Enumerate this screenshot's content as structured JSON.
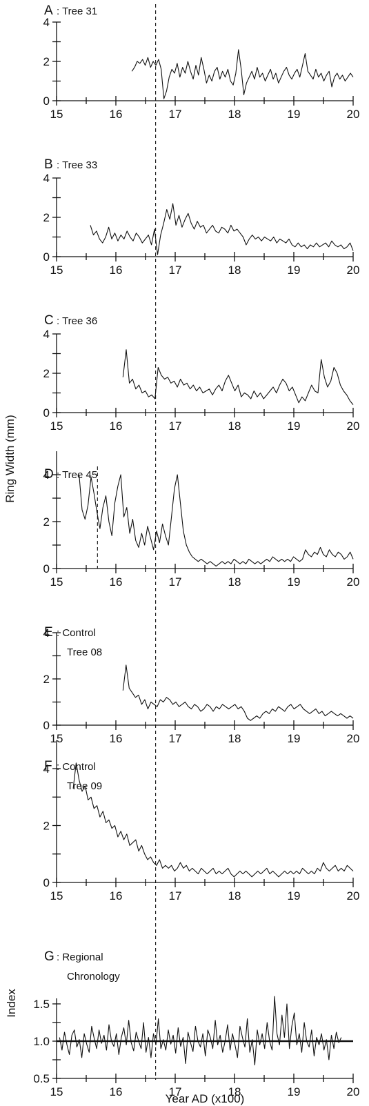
{
  "figure": {
    "ylabel_ring": "Ring Width (mm)",
    "ylabel_index": "Index",
    "xlabel": "Year AD (x100)",
    "event_year": 1667
  },
  "chart_data": [
    {
      "panel": "A",
      "label": "A",
      "sublabel": ": Tree 31",
      "sublabel2": "",
      "type": "line",
      "xlim": [
        15,
        20
      ],
      "xticks": [
        "15",
        "16",
        "17",
        "18",
        "19",
        "20"
      ],
      "ylim": [
        0,
        4
      ],
      "yticks": [
        "0",
        "2",
        "4"
      ],
      "x_start": 16.27,
      "x_end": 20.0,
      "series": [
        {
          "values": [
            1.5,
            1.7,
            2.0,
            1.9,
            2.1,
            1.8,
            2.2,
            1.7,
            2.0,
            1.8,
            2.1,
            1.6,
            0.1,
            0.5,
            1.2,
            1.6,
            1.4,
            1.9,
            1.2,
            1.7,
            1.4,
            2.0,
            1.5,
            1.1,
            1.8,
            1.3,
            2.2,
            1.6,
            0.9,
            1.3,
            1.0,
            1.5,
            1.7,
            1.1,
            1.5,
            1.2,
            1.6,
            1.0,
            0.8,
            1.4,
            2.6,
            1.6,
            0.3,
            0.9,
            1.2,
            1.5,
            1.1,
            1.7,
            1.2,
            1.4,
            1.0,
            1.3,
            1.6,
            1.1,
            1.4,
            0.9,
            1.2,
            1.5,
            1.7,
            1.3,
            1.1,
            1.4,
            1.6,
            1.2,
            1.8,
            2.4,
            1.5,
            1.3,
            1.1,
            1.6,
            1.2,
            1.4,
            1.0,
            1.3,
            1.5,
            0.7,
            1.2,
            1.4,
            1.1,
            1.3,
            1.0,
            1.2,
            1.4,
            1.2
          ]
        }
      ],
      "event_year": 1667
    },
    {
      "panel": "B",
      "label": "B",
      "sublabel": ": Tree 33",
      "sublabel2": "",
      "type": "line",
      "xlim": [
        15,
        20
      ],
      "xticks": [
        "15",
        "16",
        "17",
        "18",
        "19",
        "20"
      ],
      "ylim": [
        0,
        4
      ],
      "yticks": [
        "0",
        "2",
        "4"
      ],
      "x_start": 15.57,
      "x_end": 20.0,
      "series": [
        {
          "values": [
            1.6,
            1.1,
            1.3,
            0.9,
            0.7,
            1.0,
            1.5,
            0.9,
            1.2,
            0.8,
            1.1,
            0.9,
            1.3,
            1.0,
            0.8,
            1.2,
            1.0,
            0.7,
            0.9,
            1.1,
            0.6,
            1.4,
            0.1,
            1.1,
            1.7,
            2.4,
            1.9,
            2.7,
            1.6,
            2.1,
            1.5,
            1.9,
            2.2,
            1.7,
            1.4,
            1.8,
            1.5,
            1.6,
            1.2,
            1.4,
            1.6,
            1.3,
            1.2,
            1.5,
            1.4,
            1.2,
            1.6,
            1.3,
            1.4,
            1.2,
            1.0,
            0.6,
            0.9,
            1.1,
            0.9,
            1.0,
            0.8,
            1.0,
            0.9,
            0.8,
            1.0,
            0.7,
            0.9,
            0.8,
            0.7,
            0.9,
            0.6,
            0.5,
            0.7,
            0.5,
            0.6,
            0.4,
            0.6,
            0.5,
            0.7,
            0.5,
            0.6,
            0.7,
            0.5,
            0.8,
            0.6,
            0.5,
            0.6,
            0.4,
            0.5,
            0.7,
            0.3
          ]
        }
      ],
      "event_year": 1667
    },
    {
      "panel": "C",
      "label": "C",
      "sublabel": ": Tree 36",
      "sublabel2": "",
      "type": "line",
      "xlim": [
        15,
        20
      ],
      "xticks": [
        "15",
        "16",
        "17",
        "18",
        "19",
        "20"
      ],
      "ylim": [
        0,
        4
      ],
      "yticks": [
        "0",
        "2",
        "4"
      ],
      "x_start": 16.12,
      "x_end": 20.0,
      "series": [
        {
          "values": [
            1.8,
            3.2,
            1.5,
            1.7,
            1.2,
            1.4,
            1.0,
            1.1,
            0.8,
            0.9,
            0.7,
            2.3,
            1.9,
            1.7,
            1.8,
            1.5,
            1.6,
            1.3,
            1.7,
            1.4,
            1.5,
            1.2,
            1.4,
            1.1,
            1.3,
            1.0,
            1.1,
            1.2,
            0.9,
            1.2,
            1.4,
            1.1,
            1.6,
            1.9,
            1.5,
            1.1,
            1.4,
            0.8,
            1.0,
            0.9,
            0.7,
            1.1,
            0.8,
            1.0,
            0.7,
            0.9,
            1.1,
            1.3,
            1.0,
            1.4,
            1.7,
            1.5,
            1.1,
            1.3,
            0.9,
            0.5,
            0.8,
            0.6,
            1.0,
            1.4,
            1.1,
            1.0,
            2.7,
            1.8,
            1.3,
            1.6,
            2.3,
            2.0,
            1.4,
            1.1,
            0.9,
            0.6,
            0.4
          ]
        }
      ],
      "event_year": 1667
    },
    {
      "panel": "D",
      "label": "D",
      "sublabel": ": Tree 45",
      "sublabel2": "",
      "type": "line",
      "xlim": [
        15,
        20
      ],
      "xticks": [
        "15",
        "16",
        "17",
        "18",
        "19",
        "20"
      ],
      "ylim": [
        0,
        5
      ],
      "yticks": [
        "0",
        "2",
        "4"
      ],
      "x_start": 15.38,
      "x_end": 20.0,
      "series": [
        {
          "values": [
            4.0,
            2.5,
            2.1,
            2.7,
            3.9,
            3.2,
            2.4,
            1.7,
            2.6,
            3.1,
            2.0,
            1.4,
            2.8,
            3.5,
            4.0,
            2.2,
            2.6,
            1.5,
            2.1,
            1.2,
            0.9,
            1.5,
            1.0,
            1.8,
            1.3,
            0.8,
            1.6,
            1.1,
            1.9,
            1.4,
            1.0,
            2.2,
            3.4,
            4.0,
            2.8,
            1.6,
            1.0,
            0.7,
            0.5,
            0.4,
            0.3,
            0.4,
            0.3,
            0.2,
            0.3,
            0.2,
            0.1,
            0.2,
            0.3,
            0.2,
            0.3,
            0.2,
            0.4,
            0.3,
            0.2,
            0.3,
            0.2,
            0.4,
            0.3,
            0.2,
            0.3,
            0.2,
            0.3,
            0.4,
            0.3,
            0.5,
            0.4,
            0.3,
            0.4,
            0.3,
            0.4,
            0.3,
            0.5,
            0.4,
            0.3,
            0.4,
            0.8,
            0.6,
            0.5,
            0.7,
            0.6,
            0.9,
            0.6,
            0.5,
            0.8,
            0.6,
            0.5,
            0.7,
            0.6,
            0.4,
            0.5,
            0.7,
            0.4
          ]
        }
      ],
      "event_year": 1667,
      "extra_event_year": 1569
    },
    {
      "panel": "E",
      "label": "E",
      "sublabel": ": Control",
      "sublabel2": "Tree 08",
      "type": "line",
      "xlim": [
        15,
        20
      ],
      "xticks": [
        "15",
        "16",
        "17",
        "18",
        "19",
        "20"
      ],
      "ylim": [
        0,
        4
      ],
      "yticks": [
        "0",
        "2",
        "4"
      ],
      "x_start": 16.12,
      "x_end": 20.0,
      "series": [
        {
          "values": [
            1.5,
            2.6,
            1.6,
            1.4,
            1.2,
            1.3,
            0.9,
            1.1,
            0.7,
            1.0,
            0.9,
            0.8,
            1.1,
            1.0,
            1.2,
            1.1,
            0.9,
            1.0,
            0.8,
            0.9,
            1.0,
            0.8,
            0.7,
            0.9,
            0.8,
            0.6,
            0.7,
            0.9,
            0.8,
            0.6,
            0.8,
            0.7,
            0.9,
            0.8,
            0.7,
            0.8,
            0.9,
            0.7,
            0.8,
            0.6,
            0.3,
            0.2,
            0.3,
            0.4,
            0.3,
            0.5,
            0.6,
            0.5,
            0.7,
            0.6,
            0.8,
            0.7,
            0.6,
            0.8,
            0.9,
            0.7,
            0.8,
            0.9,
            0.7,
            0.6,
            0.5,
            0.6,
            0.7,
            0.5,
            0.6,
            0.4,
            0.5,
            0.6,
            0.5,
            0.4,
            0.5,
            0.4,
            0.3,
            0.4,
            0.3
          ]
        }
      ],
      "event_year": 1667
    },
    {
      "panel": "F",
      "label": "F",
      "sublabel": ": Control",
      "sublabel2": "Tree 09",
      "type": "line",
      "xlim": [
        15,
        20
      ],
      "xticks": [
        "15",
        "16",
        "17",
        "18",
        "19",
        "20"
      ],
      "ylim": [
        0,
        5
      ],
      "yticks": [
        "0",
        "2",
        "4"
      ],
      "x_start": 15.28,
      "x_end": 20.0,
      "series": [
        {
          "values": [
            3.3,
            4.2,
            3.6,
            3.2,
            3.4,
            2.9,
            3.0,
            2.6,
            2.7,
            2.3,
            2.5,
            2.1,
            2.2,
            1.9,
            2.0,
            1.6,
            1.8,
            1.5,
            1.7,
            1.3,
            1.4,
            1.5,
            1.1,
            1.3,
            1.0,
            0.8,
            0.9,
            0.7,
            0.6,
            0.8,
            0.5,
            0.6,
            0.5,
            0.6,
            0.4,
            0.5,
            0.7,
            0.5,
            0.6,
            0.4,
            0.5,
            0.4,
            0.3,
            0.5,
            0.4,
            0.3,
            0.4,
            0.5,
            0.3,
            0.4,
            0.3,
            0.4,
            0.5,
            0.3,
            0.2,
            0.3,
            0.4,
            0.3,
            0.4,
            0.3,
            0.2,
            0.3,
            0.4,
            0.3,
            0.4,
            0.5,
            0.3,
            0.4,
            0.3,
            0.2,
            0.3,
            0.4,
            0.3,
            0.4,
            0.3,
            0.4,
            0.3,
            0.5,
            0.4,
            0.3,
            0.4,
            0.3,
            0.5,
            0.4,
            0.7,
            0.5,
            0.4,
            0.5,
            0.6,
            0.4,
            0.5,
            0.4,
            0.6,
            0.5,
            0.4
          ]
        }
      ],
      "event_year": 1667
    },
    {
      "panel": "G",
      "label": "G",
      "sublabel": ": Regional",
      "sublabel2": "Chronology",
      "type": "line",
      "xlim": [
        15,
        20
      ],
      "xticks": [
        "15",
        "16",
        "17",
        "18",
        "19",
        "20"
      ],
      "ylim": [
        0.5,
        1.6
      ],
      "yticks": [
        "0.5",
        "1.0",
        "1.5"
      ],
      "x_start": 15.05,
      "x_end": 19.8,
      "reference_line": 1.0,
      "series": [
        {
          "values": [
            1.05,
            0.88,
            1.12,
            0.95,
            0.82,
            1.08,
            1.15,
            0.92,
            1.02,
            0.78,
            1.1,
            0.96,
            0.85,
            1.2,
            1.04,
            0.9,
            1.15,
            0.97,
            1.08,
            0.88,
            1.22,
            1.0,
            0.93,
            1.1,
            0.82,
            1.05,
            1.18,
            0.95,
            1.28,
            0.98,
            0.87,
            1.12,
            1.0,
            0.9,
            1.25,
            0.85,
            1.05,
            0.78,
            1.1,
            0.95,
            1.3,
            0.9,
            1.02,
            0.88,
            1.15,
            0.96,
            1.08,
            0.84,
            1.18,
            0.93,
            1.05,
            0.7,
            1.12,
            0.98,
            0.86,
            1.2,
            1.0,
            0.92,
            1.1,
            0.8,
            1.15,
            1.05,
            0.9,
            1.28,
            0.95,
            1.08,
            0.85,
            1.0,
            1.22,
            0.88,
            1.1,
            0.95,
            0.78,
            1.2,
            1.05,
            0.92,
            1.3,
            0.85,
            1.02,
            0.68,
            1.15,
            0.95,
            1.1,
            0.9,
            1.25,
            1.0,
            0.88,
            1.6,
            1.1,
            0.95,
            1.35,
            1.05,
            1.5,
            0.9,
            1.2,
            1.38,
            0.95,
            1.1,
            0.85,
            1.25,
            1.0,
            0.92,
            1.15,
            0.8,
            1.05,
            0.95,
            1.1,
            0.88,
            1.02,
            0.75,
            1.08,
            0.9,
            1.12,
            0.98,
            1.05
          ]
        }
      ],
      "event_year": 1667
    }
  ]
}
